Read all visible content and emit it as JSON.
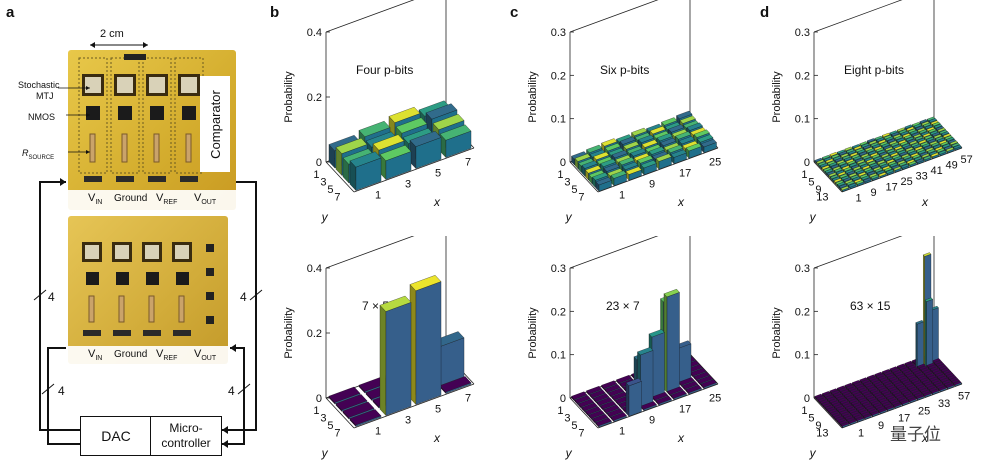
{
  "panels": {
    "a": "a",
    "b": "b",
    "c": "c",
    "d": "d"
  },
  "hardware": {
    "scale": "2 cm",
    "labels": {
      "stochastic": "Stochastic",
      "mtj": "MTJ",
      "nmos": "NMOS",
      "rsource_main": "R",
      "rsource_sub": "SOURCE",
      "comparator": "Comparator"
    },
    "pins_top": [
      {
        "main": "V",
        "sub": "IN"
      },
      {
        "main": "Ground",
        "sub": ""
      },
      {
        "main": "V",
        "sub": "REF"
      },
      {
        "main": "V",
        "sub": "OUT"
      }
    ],
    "pins_bottom": [
      {
        "main": "V",
        "sub": "IN"
      },
      {
        "main": "Ground",
        "sub": ""
      },
      {
        "main": "V",
        "sub": "REF"
      },
      {
        "main": "V",
        "sub": "OUT"
      }
    ],
    "bus_label": "4",
    "dac": "DAC",
    "micro_line1": "Micro-",
    "micro_line2": "controller"
  },
  "chart_data": [
    {
      "type": "bar3d",
      "panel": "b",
      "title": "Four p-bits",
      "zlabel": "Probability",
      "xlabel": "x",
      "ylabel": "y",
      "zlim": [
        0,
        0.4
      ],
      "zticks": [
        "0",
        "0.2",
        "0.4"
      ],
      "xticks": [
        "1",
        "3",
        "5",
        "7"
      ],
      "yticks": [
        "1",
        "3",
        "5",
        "7"
      ],
      "grid_x": 4,
      "grid_y": 4,
      "uniform_value": 0.0625
    },
    {
      "type": "bar3d",
      "panel": "c",
      "title": "Six p-bits",
      "zlabel": "Probability",
      "xlabel": "x",
      "ylabel": "y",
      "zlim": [
        0,
        0.3
      ],
      "zticks": [
        "0",
        "0.1",
        "0.2",
        "0.3"
      ],
      "xticks": [
        "1",
        "9",
        "17",
        "25"
      ],
      "yticks": [
        "1",
        "3",
        "5",
        "7"
      ],
      "grid_x": 8,
      "grid_y": 8,
      "uniform_value": 0.0156
    },
    {
      "type": "bar3d",
      "panel": "d",
      "title": "Eight p-bits",
      "zlabel": "Probability",
      "xlabel": "x",
      "ylabel": "y",
      "zlim": [
        0,
        0.3
      ],
      "zticks": [
        "0",
        "0.1",
        "0.2",
        "0.3"
      ],
      "xticks": [
        "1",
        "9",
        "17",
        "25",
        "33",
        "41",
        "49",
        "57"
      ],
      "yticks": [
        "1",
        "5",
        "9",
        "13"
      ],
      "grid_x": 16,
      "grid_y": 16,
      "uniform_value": 0.0039
    },
    {
      "type": "bar3d",
      "panel": "b",
      "title": "7 × 5",
      "zlabel": "Probability",
      "xlabel": "x",
      "ylabel": "y",
      "zlim": [
        0,
        0.4
      ],
      "zticks": [
        "0",
        "0.2",
        "0.4"
      ],
      "xticks": [
        "1",
        "3",
        "5",
        "7"
      ],
      "yticks": [
        "1",
        "3",
        "5",
        "7"
      ],
      "grid_x": 4,
      "grid_y": 4,
      "peaks": [
        {
          "x": 1,
          "y": 3,
          "value": 0.32
        },
        {
          "x": 2,
          "y": 2,
          "value": 0.17
        },
        {
          "x": 2,
          "y": 3,
          "value": 0.35
        },
        {
          "x": 3,
          "y": 2,
          "value": 0.12
        }
      ]
    },
    {
      "type": "bar3d",
      "panel": "c",
      "title": "23 × 7",
      "zlabel": "Probability",
      "xlabel": "x",
      "ylabel": "y",
      "zlim": [
        0,
        0.3
      ],
      "zticks": [
        "0",
        "0.1",
        "0.2",
        "0.3"
      ],
      "xticks": [
        "1",
        "9",
        "17",
        "25"
      ],
      "yticks": [
        "1",
        "3",
        "5",
        "7"
      ],
      "grid_x": 8,
      "grid_y": 8,
      "peaks": [
        {
          "x": 3,
          "y": 6,
          "value": 0.12
        },
        {
          "x": 3,
          "y": 5,
          "value": 0.1
        },
        {
          "x": 5,
          "y": 5,
          "value": 0.22
        },
        {
          "x": 5,
          "y": 4,
          "value": 0.2
        },
        {
          "x": 4,
          "y": 5,
          "value": 0.14
        },
        {
          "x": 6,
          "y": 4,
          "value": 0.08
        },
        {
          "x": 2,
          "y": 7,
          "value": 0.07
        }
      ]
    },
    {
      "type": "bar3d",
      "panel": "d",
      "title": "63 × 15",
      "zlabel": "Probability",
      "xlabel": "x",
      "ylabel": "y",
      "zlim": [
        0,
        0.3
      ],
      "zticks": [
        "0",
        "0.1",
        "0.2",
        "0.3"
      ],
      "xticks": [
        "1",
        "9",
        "17",
        "25",
        "33",
        "57"
      ],
      "yticks": [
        "1",
        "5",
        "9",
        "13"
      ],
      "grid_x": 16,
      "grid_y": 16,
      "peaks": [
        {
          "x": 14,
          "y": 2,
          "value": 0.25
        },
        {
          "x": 14,
          "y": 3,
          "value": 0.15
        },
        {
          "x": 15,
          "y": 2,
          "value": 0.12
        },
        {
          "x": 13,
          "y": 2,
          "value": 0.1
        }
      ]
    }
  ],
  "watermark": "量子位"
}
